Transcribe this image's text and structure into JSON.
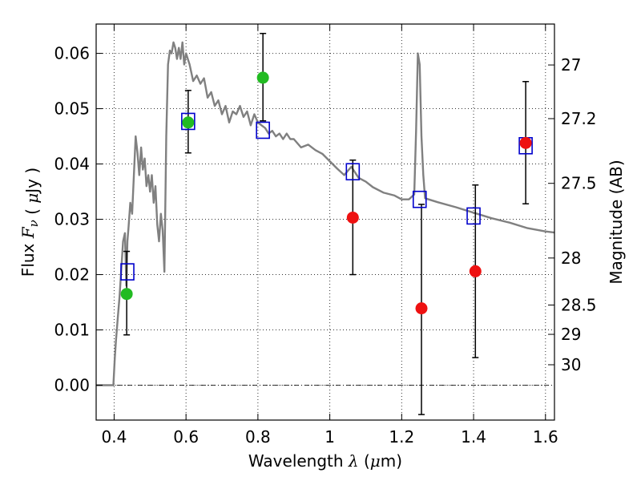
{
  "chart_data": {
    "type": "line",
    "title": "",
    "xlabel": "Wavelength  λ (μm)",
    "ylabel": "Flux  Fν  ( μJy )",
    "y2label": "Magnitude (AB)",
    "xlim": [
      0.35,
      1.625
    ],
    "ylim": [
      -0.0063,
      0.0653
    ],
    "x_ticks": [
      0.4,
      0.6,
      0.8,
      1.0,
      1.2,
      1.4,
      1.6
    ],
    "x_tick_labels": [
      "0.4",
      "0.6",
      "0.8",
      "1",
      "1.2",
      "1.4",
      "1.6"
    ],
    "y_ticks": [
      0.0,
      0.01,
      0.02,
      0.03,
      0.04,
      0.05,
      0.06
    ],
    "y_tick_labels": [
      "0.00",
      "0.01",
      "0.02",
      "0.03",
      "0.04",
      "0.05",
      "0.06"
    ],
    "y2_ticks": [
      {
        "label": "27",
        "flux": 0.0579
      },
      {
        "label": "27.2",
        "flux": 0.0482
      },
      {
        "label": "27.5",
        "flux": 0.0365
      },
      {
        "label": "28",
        "flux": 0.023
      },
      {
        "label": "28.5",
        "flux": 0.0145
      },
      {
        "label": "29",
        "flux": 0.0092
      },
      {
        "label": "30",
        "flux": 0.0037
      }
    ],
    "grid": true,
    "colors": {
      "model": "#808080",
      "model_points": "#0000cc",
      "green_points": "#22bb22",
      "red_points": "#ee1111",
      "errorbar": "#000000",
      "baseline": "#000000"
    },
    "series": [
      {
        "type": "line",
        "x": [
          0.35,
          0.398,
          0.402,
          0.405,
          0.41,
          0.415,
          0.42,
          0.425,
          0.43,
          0.434,
          0.437,
          0.44,
          0.445,
          0.45,
          0.455,
          0.46,
          0.465,
          0.47,
          0.475,
          0.48,
          0.485,
          0.49,
          0.495,
          0.5,
          0.505,
          0.51,
          0.515,
          0.52,
          0.525,
          0.53,
          0.535,
          0.54,
          0.545,
          0.55,
          0.555,
          0.56,
          0.565,
          0.57,
          0.575,
          0.58,
          0.585,
          0.59,
          0.595,
          0.6,
          0.61,
          0.62,
          0.63,
          0.64,
          0.65,
          0.66,
          0.67,
          0.68,
          0.69,
          0.7,
          0.71,
          0.72,
          0.73,
          0.74,
          0.75,
          0.76,
          0.77,
          0.78,
          0.79,
          0.8,
          0.81,
          0.82,
          0.83,
          0.84,
          0.85,
          0.86,
          0.87,
          0.88,
          0.89,
          0.9,
          0.92,
          0.94,
          0.96,
          0.98,
          1.0,
          1.02,
          1.04,
          1.06,
          1.08,
          1.1,
          1.12,
          1.15,
          1.18,
          1.2,
          1.22,
          1.235,
          1.24,
          1.245,
          1.25,
          1.255,
          1.26,
          1.265,
          1.3,
          1.35,
          1.4,
          1.45,
          1.5,
          1.55,
          1.6,
          1.625
        ],
        "y": [
          0.0,
          0.0,
          0.005,
          0.008,
          0.012,
          0.016,
          0.021,
          0.026,
          0.0275,
          0.018,
          0.026,
          0.0285,
          0.033,
          0.031,
          0.038,
          0.045,
          0.042,
          0.038,
          0.043,
          0.039,
          0.041,
          0.036,
          0.038,
          0.035,
          0.038,
          0.033,
          0.036,
          0.029,
          0.026,
          0.031,
          0.028,
          0.0205,
          0.045,
          0.058,
          0.0605,
          0.06,
          0.062,
          0.061,
          0.059,
          0.061,
          0.059,
          0.062,
          0.058,
          0.06,
          0.058,
          0.055,
          0.056,
          0.0545,
          0.0555,
          0.052,
          0.053,
          0.0505,
          0.0515,
          0.049,
          0.0505,
          0.0475,
          0.0495,
          0.049,
          0.0505,
          0.0485,
          0.0495,
          0.047,
          0.049,
          0.0475,
          0.047,
          0.0465,
          0.0455,
          0.046,
          0.045,
          0.0455,
          0.0445,
          0.0455,
          0.0445,
          0.0445,
          0.043,
          0.0435,
          0.0425,
          0.0418,
          0.0405,
          0.0392,
          0.038,
          0.0395,
          0.0375,
          0.0368,
          0.0358,
          0.0348,
          0.0343,
          0.0336,
          0.0336,
          0.0345,
          0.046,
          0.06,
          0.058,
          0.045,
          0.038,
          0.0338,
          0.0331,
          0.0322,
          0.0312,
          0.0302,
          0.0294,
          0.0284,
          0.0278,
          0.0276
        ]
      },
      {
        "type": "scatter",
        "marker": "square-open",
        "x": [
          0.437,
          0.606,
          0.814,
          1.064,
          1.25,
          1.4,
          1.545
        ],
        "y": [
          0.0205,
          0.0477,
          0.0461,
          0.0386,
          0.0336,
          0.0306,
          0.0433
        ]
      },
      {
        "type": "scatter",
        "marker": "circle",
        "x": [
          0.435,
          0.606,
          0.814
        ],
        "y": [
          0.0165,
          0.0475,
          0.0556
        ]
      },
      {
        "type": "scatter",
        "marker": "circle",
        "x": [
          1.064,
          1.255,
          1.405,
          1.545
        ],
        "y": [
          0.0303,
          0.0139,
          0.0206,
          0.0438
        ]
      },
      {
        "type": "errorbar",
        "x": [
          0.435,
          0.606,
          0.814,
          1.064,
          1.255,
          1.405,
          1.545
        ],
        "y": [
          0.0165,
          0.0475,
          0.0556,
          0.0303,
          0.0139,
          0.0206,
          0.0438
        ],
        "yerr_low": [
          0.0074,
          0.0055,
          0.0078,
          0.0103,
          0.0192,
          0.0156,
          0.011
        ],
        "yerr_high": [
          0.0077,
          0.0058,
          0.008,
          0.0104,
          0.0188,
          0.0156,
          0.0111
        ]
      }
    ]
  }
}
